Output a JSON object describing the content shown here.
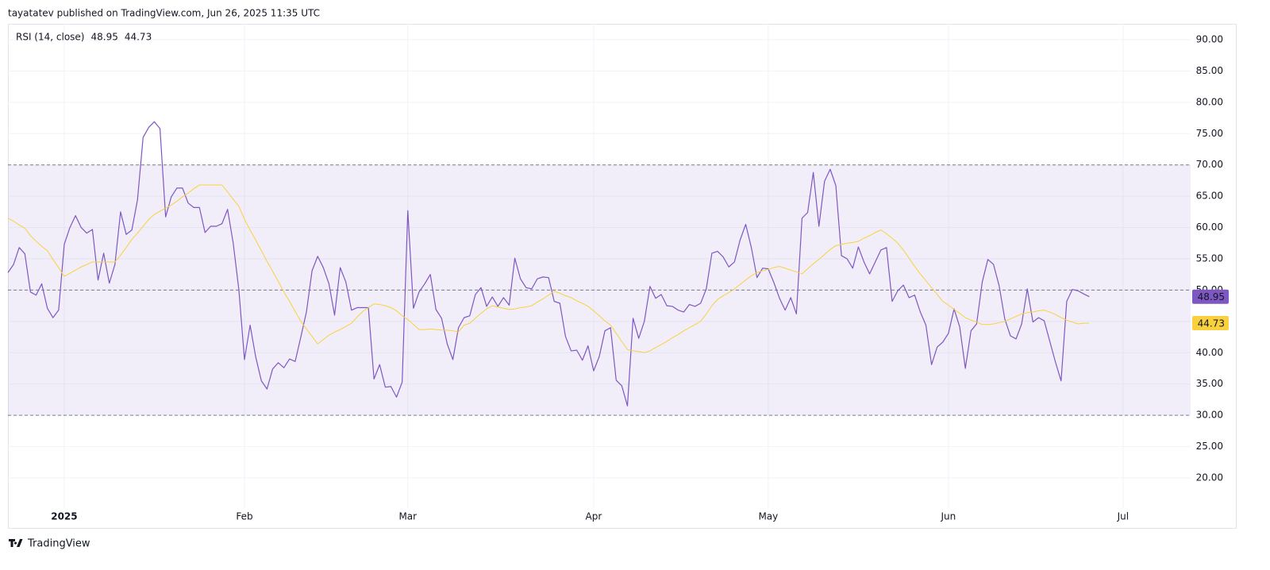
{
  "header": "tayatatev published on TradingView.com, Jun 26, 2025 11:35 UTC",
  "footer": "TradingView",
  "chart_data": {
    "type": "line",
    "title": "RSI (14, close)",
    "categories": [
      null,
      null,
      null,
      null,
      null,
      null,
      null,
      null,
      null,
      null,
      "2025",
      null,
      null,
      null,
      null,
      null,
      null,
      null,
      null,
      null,
      null,
      null,
      null,
      null,
      null,
      null,
      null,
      null,
      null,
      null,
      null,
      null,
      null,
      null,
      null,
      null,
      null,
      null,
      null,
      null,
      null,
      null,
      "Feb",
      null,
      null,
      null,
      null,
      null,
      null,
      null,
      null,
      null,
      null,
      null,
      null,
      null,
      null,
      null,
      null,
      null,
      null,
      null,
      null,
      null,
      null,
      null,
      null,
      null,
      null,
      null,
      null,
      "Mar",
      null,
      null,
      null,
      null,
      null,
      null,
      null,
      null,
      null,
      null,
      null,
      null,
      null,
      null,
      null,
      null,
      null,
      null,
      null,
      null,
      null,
      null,
      null,
      null,
      null,
      null,
      null,
      null,
      null,
      null,
      null,
      null,
      "Apr",
      null,
      null,
      null,
      null,
      null,
      null,
      null,
      null,
      null,
      null,
      null,
      null,
      null,
      null,
      null,
      null,
      null,
      null,
      null,
      null,
      null,
      null,
      null,
      null,
      null,
      null,
      null,
      null,
      null,
      null,
      "May",
      null,
      null,
      null,
      null,
      null,
      null,
      null,
      null,
      null,
      null,
      null,
      null,
      null,
      null,
      null,
      null,
      null,
      null,
      null,
      null,
      null,
      null,
      null,
      null,
      null,
      null,
      null,
      null,
      null,
      null,
      null,
      "Jun",
      null,
      null,
      null,
      null,
      null,
      null,
      null,
      null,
      null,
      null,
      null,
      null,
      null,
      null,
      null,
      null,
      null,
      null,
      null,
      null,
      null,
      null,
      null,
      null,
      null,
      null,
      null,
      null,
      null,
      null,
      "Jul",
      null,
      null,
      null,
      null,
      null,
      null,
      null,
      null,
      null,
      null,
      null,
      null
    ],
    "series": [
      {
        "color": "#7e57c2",
        "values": [
          52.8,
          54.1,
          56.8,
          55.8,
          49.7,
          49.2,
          51.0,
          47.1,
          45.6,
          46.8,
          57.3,
          60.0,
          61.9,
          60.0,
          59.1,
          59.7,
          51.6,
          55.9,
          51.1,
          54.1,
          62.5,
          58.9,
          59.6,
          64.4,
          74.4,
          76.0,
          76.9,
          75.8,
          61.7,
          64.9,
          66.3,
          66.3,
          63.9,
          63.2,
          63.2,
          59.2,
          60.2,
          60.2,
          60.6,
          62.9,
          57.5,
          50.1,
          38.9,
          44.4,
          39.3,
          35.5,
          34.2,
          37.4,
          38.4,
          37.6,
          39.0,
          38.6,
          42.5,
          46.5,
          53.1,
          55.4,
          53.6,
          51.0,
          46.0,
          53.6,
          51.3,
          46.8,
          47.2,
          47.2,
          47.2,
          35.8,
          38.1,
          34.5,
          34.6,
          32.9,
          35.3,
          62.7,
          47.1,
          49.7,
          51.0,
          52.5,
          46.9,
          45.5,
          41.4,
          38.9,
          44.0,
          45.6,
          45.9,
          49.3,
          50.4,
          47.4,
          48.9,
          47.4,
          48.8,
          47.6,
          55.1,
          51.8,
          50.4,
          50.2,
          51.8,
          52.1,
          52.0,
          48.2,
          47.9,
          42.6,
          40.3,
          40.4,
          38.8,
          41.1,
          37.1,
          39.4,
          43.5,
          44.0,
          35.6,
          34.7,
          31.5,
          45.5,
          42.3,
          45.0,
          50.6,
          48.7,
          49.3,
          47.5,
          47.4,
          46.8,
          46.5,
          47.7,
          47.4,
          47.9,
          50.2,
          55.9,
          56.2,
          55.3,
          53.7,
          54.5,
          58.0,
          60.5,
          56.8,
          52.0,
          53.5,
          53.4,
          51.2,
          48.7,
          46.8,
          48.8,
          46.2,
          61.5,
          62.4,
          68.8,
          60.2,
          67.4,
          69.3,
          66.7,
          55.5,
          55.0,
          53.5,
          56.9,
          54.5,
          52.6,
          54.5,
          56.4,
          56.8,
          48.2,
          49.9,
          50.8,
          48.8,
          49.2,
          46.5,
          44.4,
          38.1,
          40.9,
          41.7,
          43.1,
          47.0,
          44.1,
          37.5,
          43.5,
          44.6,
          51.3,
          54.9,
          54.1,
          50.7,
          45.4,
          42.7,
          42.2,
          44.6,
          50.2,
          44.9,
          45.6,
          45.1,
          41.8,
          38.5,
          35.5,
          48.2,
          50.1,
          49.9,
          49.4,
          48.95,
          null,
          null,
          null,
          null,
          null,
          null,
          null,
          null,
          null,
          null,
          null,
          null,
          null,
          null,
          null,
          null,
          null,
          null
        ]
      },
      {
        "color": "#f9d13e",
        "values": [
          61.5,
          61.0,
          60.4,
          59.9,
          58.7,
          57.8,
          57.0,
          56.3,
          54.9,
          53.6,
          52.2,
          52.7,
          53.2,
          53.7,
          54.1,
          54.5,
          54.5,
          54.5,
          54.5,
          54.5,
          55.6,
          56.8,
          58.1,
          59.1,
          60.2,
          61.3,
          62.1,
          62.6,
          63.1,
          63.6,
          64.2,
          64.9,
          65.5,
          66.2,
          66.8,
          66.8,
          66.8,
          66.8,
          66.8,
          65.7,
          64.5,
          63.4,
          61.3,
          59.6,
          58.0,
          56.3,
          54.6,
          53.0,
          51.4,
          49.7,
          48.2,
          46.6,
          45.0,
          43.8,
          42.6,
          41.4,
          42.1,
          42.8,
          43.3,
          43.7,
          44.2,
          44.7,
          45.7,
          46.6,
          47.2,
          47.8,
          47.7,
          47.5,
          47.2,
          46.7,
          45.9,
          45.3,
          44.5,
          43.7,
          43.7,
          43.8,
          43.7,
          43.6,
          43.6,
          43.5,
          43.3,
          44.4,
          44.7,
          45.5,
          46.3,
          47.0,
          47.5,
          47.3,
          47.1,
          46.9,
          47.0,
          47.2,
          47.3,
          47.5,
          48.1,
          48.6,
          49.2,
          49.8,
          49.5,
          49.1,
          48.8,
          48.3,
          47.9,
          47.4,
          46.7,
          45.9,
          45.1,
          44.4,
          43.1,
          41.8,
          40.5,
          40.3,
          40.2,
          40.0,
          40.3,
          40.8,
          41.3,
          41.8,
          42.4,
          42.9,
          43.5,
          44.0,
          44.5,
          45.0,
          46.2,
          47.5,
          48.5,
          49.1,
          49.6,
          50.2,
          50.9,
          51.6,
          52.3,
          52.8,
          53.1,
          53.3,
          53.6,
          53.8,
          53.5,
          53.2,
          52.9,
          52.6,
          53.4,
          54.2,
          54.9,
          55.7,
          56.5,
          57.1,
          57.3,
          57.5,
          57.6,
          57.8,
          58.3,
          58.7,
          59.2,
          59.6,
          59.0,
          58.3,
          57.5,
          56.4,
          55.1,
          53.8,
          52.6,
          51.5,
          50.4,
          49.3,
          48.2,
          47.6,
          46.9,
          46.3,
          45.6,
          45.2,
          44.9,
          44.5,
          44.5,
          44.6,
          44.8,
          45.0,
          45.4,
          45.8,
          46.2,
          46.4,
          46.5,
          46.7,
          46.8,
          46.5,
          46.1,
          45.6,
          45.2,
          44.9,
          44.6,
          44.7,
          44.73,
          null,
          null,
          null,
          null,
          null,
          null,
          null,
          null,
          null,
          null,
          null,
          null,
          null,
          null,
          null,
          null,
          null,
          null
        ]
      }
    ],
    "ylim": [
      15.18,
      92.54
    ],
    "yticks": [
      {
        "value": 20,
        "label": "20.00"
      },
      {
        "value": 25,
        "label": "25.00"
      },
      {
        "value": 30,
        "label": "30.00"
      },
      {
        "value": 35,
        "label": "35.00"
      },
      {
        "value": 40,
        "label": "40.00"
      },
      {
        "value": 45,
        "label": "45.00"
      },
      {
        "value": 50,
        "label": "50.00"
      },
      {
        "value": 55,
        "label": "55.00"
      },
      {
        "value": 60,
        "label": "60.00"
      },
      {
        "value": 65,
        "label": "65.00"
      },
      {
        "value": 70,
        "label": "70.00"
      },
      {
        "value": 75,
        "label": "75.00"
      },
      {
        "value": 80,
        "label": "80.00"
      },
      {
        "value": 85,
        "label": "85.00"
      },
      {
        "value": 90,
        "label": "90.00"
      }
    ],
    "band": [
      30,
      70
    ],
    "band_color": "#7e57c2",
    "levels": [
      70,
      50,
      30
    ],
    "grid": true
  }
}
